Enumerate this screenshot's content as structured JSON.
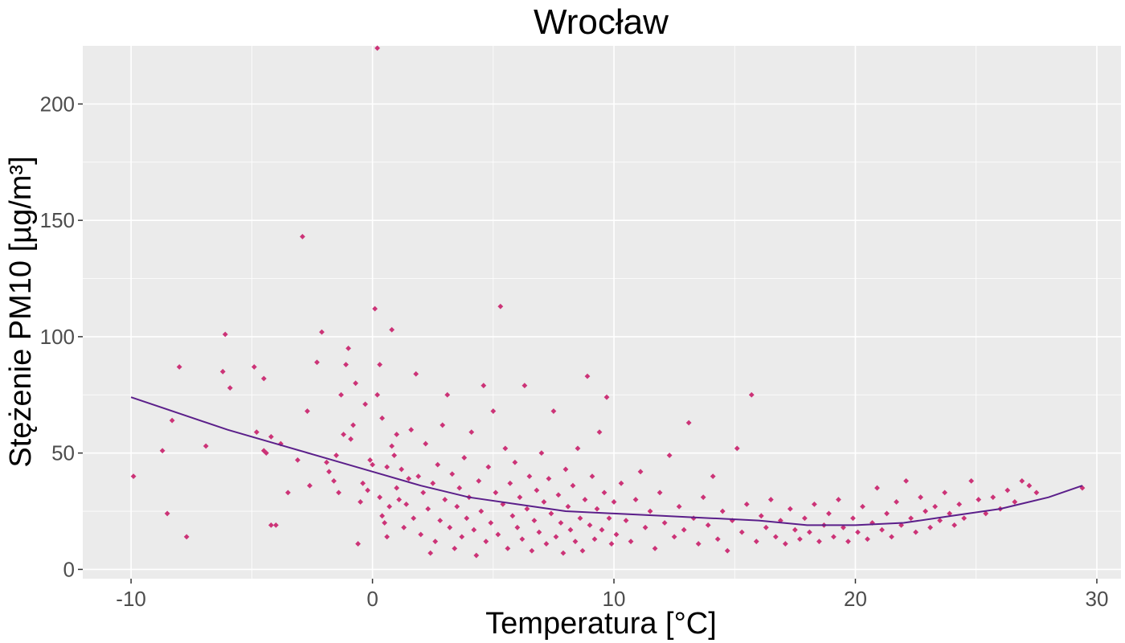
{
  "chart_data": {
    "type": "scatter",
    "title": "Wrocław",
    "xlabel": "Temperatura [°C]",
    "ylabel": "Stężenie PM10 [µg/m³]",
    "xlim": [
      -12,
      31
    ],
    "ylim": [
      -4,
      225
    ],
    "x_ticks": [
      -10,
      0,
      10,
      20,
      30
    ],
    "y_ticks": [
      0,
      50,
      100,
      150,
      200
    ],
    "x_tick_labels": [
      "-10",
      "0",
      "10",
      "20",
      "30"
    ],
    "y_tick_labels": [
      "0",
      "50",
      "100",
      "150",
      "200"
    ],
    "grid": true,
    "legend": "none",
    "colors": {
      "panel": "#ebebeb",
      "grid": "#ffffff",
      "points": "#cc3377",
      "smooth": "#5b1f8a",
      "tick_text": "#4d4d4d"
    },
    "points": [
      [
        -9.9,
        40
      ],
      [
        -8.7,
        51
      ],
      [
        -8.5,
        24
      ],
      [
        -8.3,
        64
      ],
      [
        -8.0,
        87
      ],
      [
        -7.7,
        14
      ],
      [
        -6.9,
        53
      ],
      [
        -6.2,
        85
      ],
      [
        -6.1,
        101
      ],
      [
        -5.9,
        78
      ],
      [
        -4.9,
        87
      ],
      [
        -4.8,
        59
      ],
      [
        -4.5,
        51
      ],
      [
        -4.5,
        82
      ],
      [
        -4.4,
        50
      ],
      [
        -4.2,
        57
      ],
      [
        -4.2,
        19
      ],
      [
        -4.0,
        19
      ],
      [
        -3.8,
        54
      ],
      [
        -3.5,
        33
      ],
      [
        -3.1,
        47
      ],
      [
        -2.9,
        143
      ],
      [
        -2.7,
        68
      ],
      [
        -2.6,
        36
      ],
      [
        -2.3,
        89
      ],
      [
        -2.1,
        102
      ],
      [
        -1.9,
        46
      ],
      [
        -1.8,
        42
      ],
      [
        -1.6,
        38
      ],
      [
        -1.5,
        49
      ],
      [
        -1.4,
        33
      ],
      [
        -1.3,
        75
      ],
      [
        -1.2,
        58
      ],
      [
        -1.1,
        88
      ],
      [
        -1.0,
        95
      ],
      [
        -0.9,
        56
      ],
      [
        -0.8,
        62
      ],
      [
        -0.7,
        80
      ],
      [
        -0.6,
        11
      ],
      [
        -0.5,
        29
      ],
      [
        -0.4,
        37
      ],
      [
        -0.3,
        71
      ],
      [
        -0.2,
        34
      ],
      [
        -0.1,
        47
      ],
      [
        0.0,
        45
      ],
      [
        0.1,
        112
      ],
      [
        0.2,
        75
      ],
      [
        0.3,
        88
      ],
      [
        0.4,
        65
      ],
      [
        0.5,
        20
      ],
      [
        0.6,
        44
      ],
      [
        0.7,
        27
      ],
      [
        0.8,
        103
      ],
      [
        0.9,
        49
      ],
      [
        1.0,
        58
      ],
      [
        1.1,
        30
      ],
      [
        0.2,
        224
      ],
      [
        0.3,
        31
      ],
      [
        0.4,
        23
      ],
      [
        0.6,
        14
      ],
      [
        0.8,
        53
      ],
      [
        1.0,
        35
      ],
      [
        1.2,
        43
      ],
      [
        1.3,
        18
      ],
      [
        1.4,
        28
      ],
      [
        1.5,
        39
      ],
      [
        1.6,
        60
      ],
      [
        1.7,
        22
      ],
      [
        1.8,
        84
      ],
      [
        1.9,
        40
      ],
      [
        2.0,
        15
      ],
      [
        2.1,
        33
      ],
      [
        2.2,
        54
      ],
      [
        2.3,
        26
      ],
      [
        2.4,
        7
      ],
      [
        2.5,
        37
      ],
      [
        2.6,
        12
      ],
      [
        2.7,
        45
      ],
      [
        2.8,
        21
      ],
      [
        2.9,
        62
      ],
      [
        3.0,
        30
      ],
      [
        3.1,
        75
      ],
      [
        3.2,
        18
      ],
      [
        3.3,
        41
      ],
      [
        3.4,
        9
      ],
      [
        3.5,
        27
      ],
      [
        3.6,
        35
      ],
      [
        3.7,
        14
      ],
      [
        3.8,
        48
      ],
      [
        3.9,
        22
      ],
      [
        4.0,
        31
      ],
      [
        4.1,
        59
      ],
      [
        4.2,
        17
      ],
      [
        4.3,
        6
      ],
      [
        4.4,
        38
      ],
      [
        4.5,
        25
      ],
      [
        4.6,
        79
      ],
      [
        4.7,
        12
      ],
      [
        4.8,
        44
      ],
      [
        4.9,
        20
      ],
      [
        5.0,
        68
      ],
      [
        5.1,
        33
      ],
      [
        5.2,
        15
      ],
      [
        5.3,
        113
      ],
      [
        5.4,
        28
      ],
      [
        5.5,
        52
      ],
      [
        5.6,
        9
      ],
      [
        5.7,
        37
      ],
      [
        5.8,
        23
      ],
      [
        5.9,
        46
      ],
      [
        6.0,
        18
      ],
      [
        6.1,
        31
      ],
      [
        6.2,
        13
      ],
      [
        6.3,
        79
      ],
      [
        6.4,
        26
      ],
      [
        6.5,
        40
      ],
      [
        6.6,
        8
      ],
      [
        6.7,
        21
      ],
      [
        6.8,
        34
      ],
      [
        6.9,
        16
      ],
      [
        7.0,
        50
      ],
      [
        7.1,
        29
      ],
      [
        7.2,
        11
      ],
      [
        7.3,
        39
      ],
      [
        7.4,
        24
      ],
      [
        7.5,
        68
      ],
      [
        7.6,
        14
      ],
      [
        7.7,
        32
      ],
      [
        7.8,
        20
      ],
      [
        7.9,
        7
      ],
      [
        8.0,
        43
      ],
      [
        8.1,
        27
      ],
      [
        8.2,
        17
      ],
      [
        8.3,
        36
      ],
      [
        8.4,
        12
      ],
      [
        8.5,
        52
      ],
      [
        8.6,
        22
      ],
      [
        8.7,
        8
      ],
      [
        8.8,
        30
      ],
      [
        8.9,
        83
      ],
      [
        9.0,
        19
      ],
      [
        9.1,
        40
      ],
      [
        9.2,
        13
      ],
      [
        9.3,
        26
      ],
      [
        9.4,
        59
      ],
      [
        9.5,
        17
      ],
      [
        9.6,
        33
      ],
      [
        9.7,
        74
      ],
      [
        9.8,
        22
      ],
      [
        9.9,
        11
      ],
      [
        10.0,
        29
      ],
      [
        10.1,
        15
      ],
      [
        10.3,
        37
      ],
      [
        10.5,
        21
      ],
      [
        10.7,
        12
      ],
      [
        10.9,
        30
      ],
      [
        11.1,
        42
      ],
      [
        11.3,
        18
      ],
      [
        11.5,
        25
      ],
      [
        11.7,
        9
      ],
      [
        11.9,
        33
      ],
      [
        12.1,
        20
      ],
      [
        12.3,
        49
      ],
      [
        12.5,
        14
      ],
      [
        12.7,
        27
      ],
      [
        12.9,
        17
      ],
      [
        13.1,
        63
      ],
      [
        13.3,
        22
      ],
      [
        13.5,
        11
      ],
      [
        13.7,
        31
      ],
      [
        13.9,
        19
      ],
      [
        14.1,
        40
      ],
      [
        14.3,
        13
      ],
      [
        14.5,
        25
      ],
      [
        14.7,
        8
      ],
      [
        14.9,
        21
      ],
      [
        15.1,
        52
      ],
      [
        15.3,
        16
      ],
      [
        15.5,
        28
      ],
      [
        15.7,
        75
      ],
      [
        15.9,
        12
      ],
      [
        16.1,
        23
      ],
      [
        16.3,
        18
      ],
      [
        16.5,
        30
      ],
      [
        16.7,
        14
      ],
      [
        16.9,
        21
      ],
      [
        17.1,
        11
      ],
      [
        17.3,
        26
      ],
      [
        17.5,
        17
      ],
      [
        17.7,
        13
      ],
      [
        17.9,
        22
      ],
      [
        18.1,
        16
      ],
      [
        18.3,
        28
      ],
      [
        18.5,
        12
      ],
      [
        18.7,
        19
      ],
      [
        18.9,
        24
      ],
      [
        19.1,
        14
      ],
      [
        19.3,
        30
      ],
      [
        19.5,
        18
      ],
      [
        19.7,
        12
      ],
      [
        19.9,
        22
      ],
      [
        20.1,
        16
      ],
      [
        20.3,
        27
      ],
      [
        20.5,
        13
      ],
      [
        20.7,
        20
      ],
      [
        20.9,
        35
      ],
      [
        21.1,
        17
      ],
      [
        21.3,
        24
      ],
      [
        21.5,
        14
      ],
      [
        21.7,
        29
      ],
      [
        21.9,
        19
      ],
      [
        22.1,
        38
      ],
      [
        22.3,
        22
      ],
      [
        22.5,
        16
      ],
      [
        22.7,
        31
      ],
      [
        22.9,
        25
      ],
      [
        23.1,
        18
      ],
      [
        23.3,
        27
      ],
      [
        23.5,
        21
      ],
      [
        23.7,
        33
      ],
      [
        23.9,
        24
      ],
      [
        24.1,
        19
      ],
      [
        24.3,
        28
      ],
      [
        24.5,
        22
      ],
      [
        24.8,
        38
      ],
      [
        25.1,
        30
      ],
      [
        25.4,
        24
      ],
      [
        25.7,
        31
      ],
      [
        26.0,
        26
      ],
      [
        26.3,
        34
      ],
      [
        26.6,
        29
      ],
      [
        26.9,
        38
      ],
      [
        27.2,
        36
      ],
      [
        27.5,
        33
      ],
      [
        29.4,
        35
      ]
    ],
    "smooth": [
      [
        -10,
        74
      ],
      [
        -8,
        67
      ],
      [
        -6,
        60
      ],
      [
        -4,
        54
      ],
      [
        -2,
        48
      ],
      [
        0,
        42
      ],
      [
        2,
        36
      ],
      [
        4,
        31
      ],
      [
        6,
        28
      ],
      [
        8,
        25
      ],
      [
        10,
        24
      ],
      [
        12,
        23
      ],
      [
        14,
        22
      ],
      [
        16,
        21
      ],
      [
        18,
        19
      ],
      [
        20,
        19
      ],
      [
        22,
        20
      ],
      [
        24,
        23
      ],
      [
        26,
        26
      ],
      [
        28,
        31
      ],
      [
        29.4,
        36
      ]
    ]
  }
}
